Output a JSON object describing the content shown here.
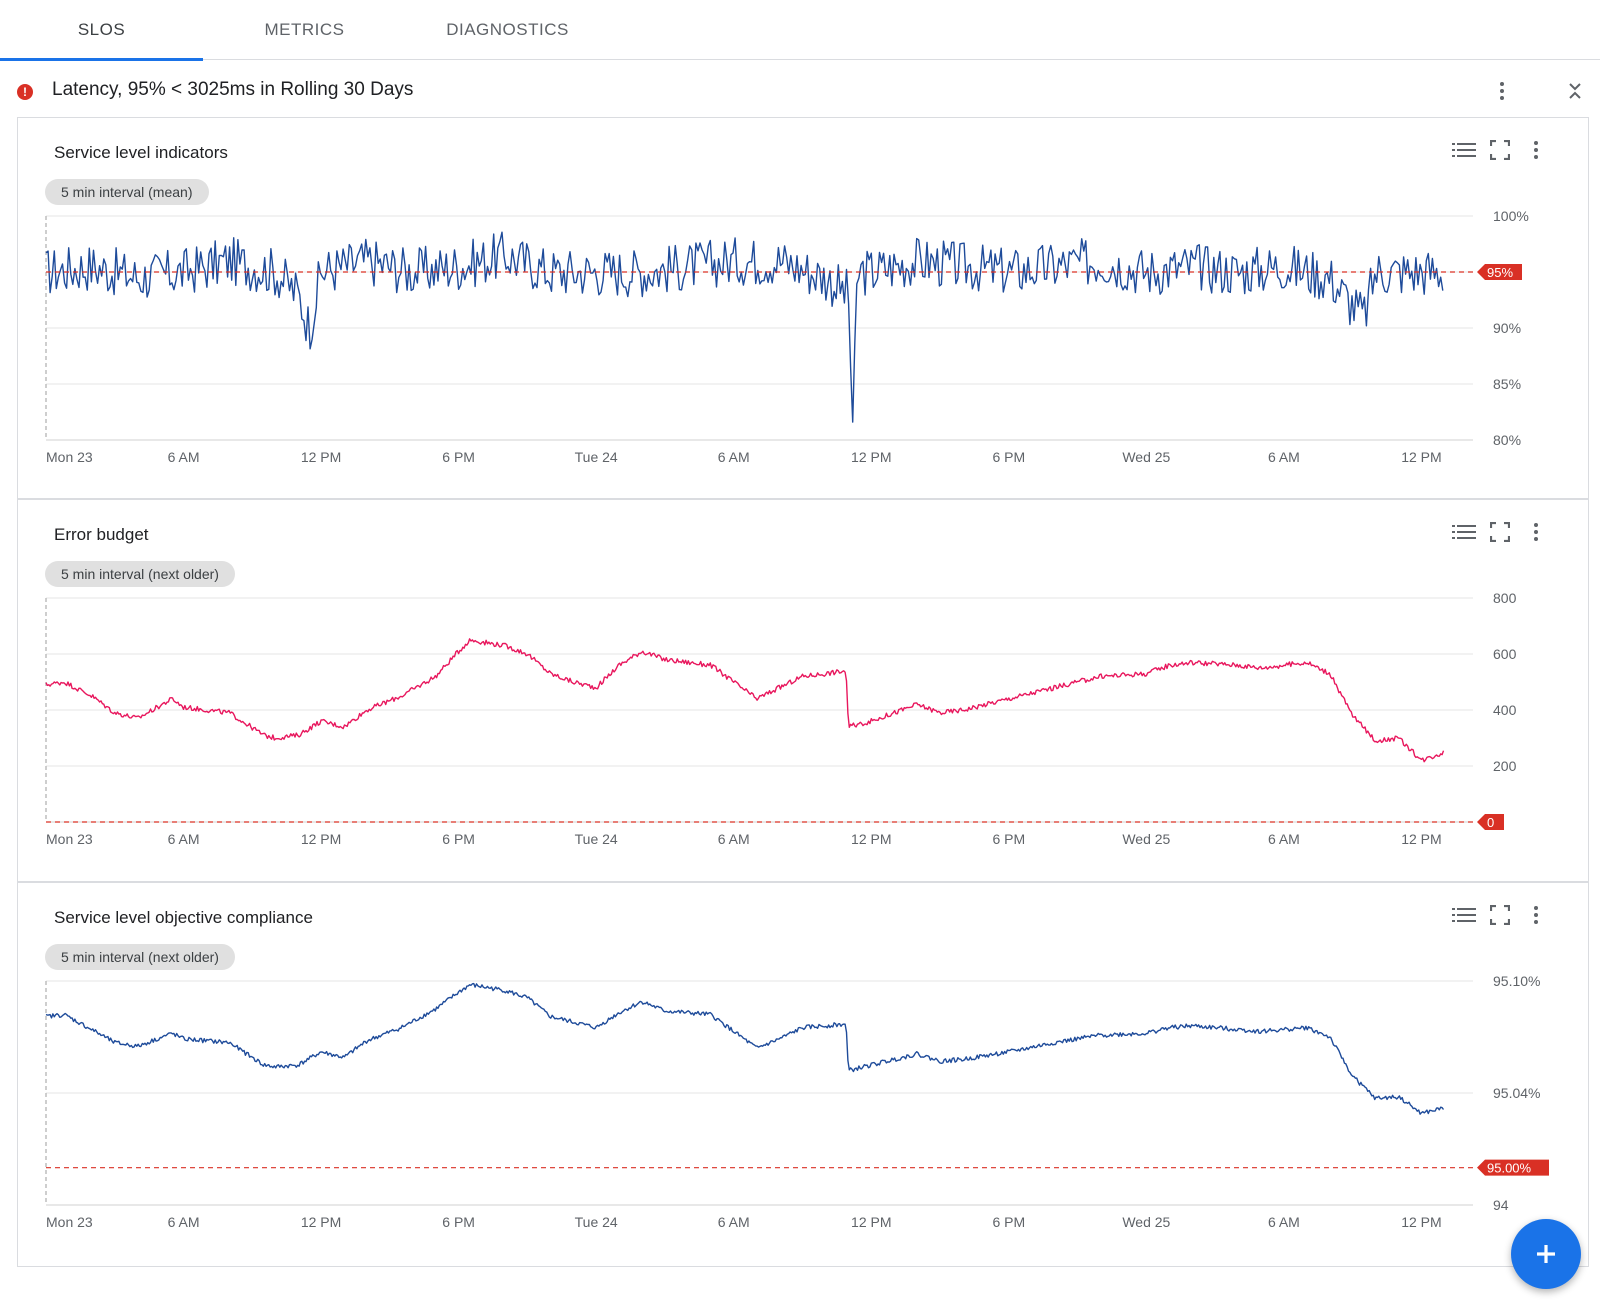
{
  "tabs": [
    {
      "label": "SLOS",
      "active": true
    },
    {
      "label": "METRICS",
      "active": false
    },
    {
      "label": "DIAGNOSTICS",
      "active": false
    }
  ],
  "slo": {
    "status_icon": "error-icon",
    "status_glyph": "!",
    "status_color": "#d93025",
    "title": "Latency, 95% < 3025ms in Rolling 30 Days"
  },
  "colors": {
    "accent": "#1a73e8",
    "line_blue": "#1e4b9a",
    "line_pink": "#e8175d",
    "threshold_red": "#d93025"
  },
  "charts": [
    {
      "id": "sli",
      "title": "Service level indicators",
      "chip": "5 min interval (mean)"
    },
    {
      "id": "budget",
      "title": "Error budget",
      "chip": "5 min interval (next older)"
    },
    {
      "id": "compliance",
      "title": "Service level objective compliance",
      "chip": "5 min interval (next older)"
    }
  ],
  "chart_data": [
    {
      "type": "line",
      "title": "Service level indicators",
      "xlabel": "",
      "ylabel": "",
      "x_ticks": [
        "Mon 23",
        "6 AM",
        "12 PM",
        "6 PM",
        "Tue 24",
        "6 AM",
        "12 PM",
        "6 PM",
        "Wed 25",
        "6 AM",
        "12 PM"
      ],
      "y_ticks": [
        "100%",
        "90%",
        "85%",
        "80%"
      ],
      "ylim": [
        80,
        100
      ],
      "threshold": {
        "value": 95,
        "label": "95%"
      },
      "series": [
        {
          "color": "#1e4b9a",
          "x_hours": [
            0,
            2,
            4,
            6,
            8,
            10,
            11,
            11.5,
            12,
            14,
            16,
            18,
            20,
            22,
            24,
            26,
            28,
            30,
            32,
            34,
            35,
            35.2,
            35.4,
            36,
            38,
            40,
            42,
            44,
            46,
            48,
            50,
            52,
            54,
            56,
            57,
            57.5,
            58,
            60,
            61
          ],
          "values": [
            95,
            95.5,
            94.5,
            95,
            96,
            95,
            93,
            90,
            95,
            96,
            95,
            95.5,
            96.5,
            95,
            95,
            95,
            95.5,
            96,
            96,
            94.5,
            93,
            81,
            95,
            95,
            96,
            95.5,
            95,
            95.5,
            96,
            95,
            95.5,
            95,
            95.5,
            94.5,
            92,
            91,
            95,
            95,
            95
          ],
          "noise": 2.2
        }
      ]
    },
    {
      "type": "line",
      "title": "Error budget",
      "xlabel": "",
      "ylabel": "",
      "x_ticks": [
        "Mon 23",
        "6 AM",
        "12 PM",
        "6 PM",
        "Tue 24",
        "6 AM",
        "12 PM",
        "6 PM",
        "Wed 25",
        "6 AM",
        "12 PM"
      ],
      "y_ticks": [
        "800",
        "600",
        "400",
        "200"
      ],
      "ylim": [
        0,
        800
      ],
      "threshold": {
        "value": 0,
        "label": "0"
      },
      "series": [
        {
          "color": "#e8175d",
          "x_hours": [
            0,
            0.8,
            2,
            3,
            4,
            5.5,
            6,
            7,
            8,
            9.5,
            10,
            11,
            12,
            13,
            14,
            15.5,
            17,
            18,
            18.5,
            20,
            21,
            22,
            23,
            24,
            25,
            26,
            27,
            28,
            29,
            31,
            32,
            33,
            34,
            34.9,
            35,
            36,
            38,
            39,
            40,
            42,
            44,
            45,
            46,
            48,
            49,
            50,
            52,
            53,
            54,
            55,
            56,
            57,
            58,
            59,
            60,
            61
          ],
          "values": [
            490,
            500,
            450,
            390,
            370,
            440,
            410,
            400,
            390,
            310,
            300,
            310,
            360,
            340,
            400,
            450,
            520,
            610,
            650,
            630,
            600,
            530,
            500,
            480,
            560,
            610,
            580,
            570,
            560,
            440,
            480,
            520,
            530,
            540,
            340,
            360,
            420,
            390,
            400,
            440,
            480,
            500,
            520,
            530,
            560,
            570,
            560,
            550,
            560,
            570,
            530,
            380,
            290,
            300,
            220,
            250
          ],
          "noise": 9
        }
      ]
    },
    {
      "type": "line",
      "title": "Service level objective compliance",
      "xlabel": "",
      "ylabel": "",
      "x_ticks": [
        "Mon 23",
        "6 AM",
        "12 PM",
        "6 PM",
        "Tue 24",
        "6 AM",
        "12 PM",
        "6 PM",
        "Wed 25",
        "6 AM",
        "12 PM"
      ],
      "y_ticks": [
        "95.10%",
        "95.04%",
        "94"
      ],
      "ylim": [
        94.98,
        95.1
      ],
      "threshold": {
        "value": 95.0,
        "label": "95.00%"
      },
      "series": [
        {
          "color": "#1e4b9a",
          "x_hours": [
            0,
            0.8,
            2,
            3,
            4,
            5.5,
            6,
            7,
            8,
            9.5,
            10,
            11,
            12,
            13,
            14,
            15.5,
            17,
            18,
            18.5,
            20,
            21,
            22,
            23,
            24,
            25,
            26,
            27,
            28,
            29,
            31,
            32,
            33,
            34,
            34.9,
            35,
            36,
            38,
            39,
            40,
            42,
            44,
            45,
            46,
            48,
            49,
            50,
            52,
            53,
            54,
            55,
            56,
            57,
            58,
            59,
            60,
            61
          ],
          "values": [
            95.081,
            95.082,
            95.074,
            95.067,
            95.065,
            95.072,
            95.069,
            95.068,
            95.067,
            95.055,
            95.054,
            95.055,
            95.062,
            95.059,
            95.068,
            95.075,
            95.085,
            95.094,
            95.098,
            95.095,
            95.091,
            95.081,
            95.078,
            95.075,
            95.083,
            95.089,
            95.084,
            95.083,
            95.082,
            95.064,
            95.069,
            95.075,
            95.076,
            95.077,
            95.052,
            95.055,
            95.061,
            95.057,
            95.058,
            95.062,
            95.067,
            95.069,
            95.071,
            95.072,
            95.075,
            95.076,
            95.074,
            95.073,
            95.074,
            95.075,
            95.07,
            95.049,
            95.037,
            95.038,
            95.029,
            95.032
          ],
          "noise": 0.0012
        }
      ]
    }
  ]
}
